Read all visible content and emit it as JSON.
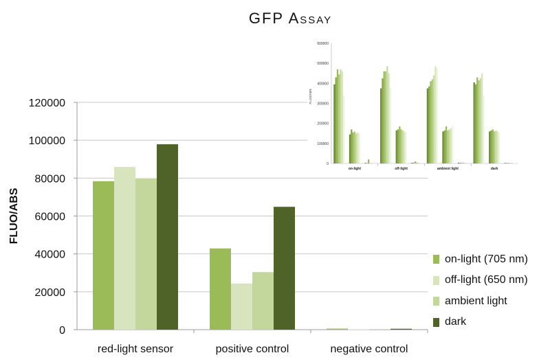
{
  "title": "GFP Assay",
  "chart_data": [
    {
      "type": "bar",
      "title": "GFP Assay",
      "xlabel": "",
      "ylabel": "FLUO/ABS",
      "ylim": [
        0,
        120000
      ],
      "yticks": [
        0,
        20000,
        40000,
        60000,
        80000,
        100000,
        120000
      ],
      "ytick_labels": [
        "0",
        "20000",
        "40000",
        "60000",
        "80000",
        "100000",
        "120000"
      ],
      "grid": true,
      "legend": "right",
      "categories": [
        "red-light sensor",
        "positive control",
        "negative control"
      ],
      "series": [
        {
          "name": "on-light (705 nm)",
          "color": "#9bbb59",
          "values": [
            78500,
            43000,
            700
          ]
        },
        {
          "name": "off-light (650 nm)",
          "color": "#d7e4bd",
          "values": [
            86000,
            24500,
            300
          ]
        },
        {
          "name": "ambient light",
          "color": "#c3d69b",
          "values": [
            80000,
            30500,
            400
          ]
        },
        {
          "name": "dark",
          "color": "#4f6228",
          "values": [
            98000,
            65000,
            600
          ]
        }
      ]
    },
    {
      "type": "bar",
      "title": "",
      "xlabel": "",
      "ylabel": "FLUO/ABS",
      "ylim": [
        0,
        600000
      ],
      "yticks": [
        0,
        100000,
        200000,
        300000,
        400000,
        500000,
        600000
      ],
      "ytick_labels": [
        "0",
        "100000",
        "200000",
        "300000",
        "400000",
        "500000",
        "600000"
      ],
      "grid": false,
      "legend": "none",
      "categories": [
        "on-light",
        "off-light",
        "ambient light",
        "dark"
      ],
      "groups": [
        [
          395000,
          430000,
          470000,
          445000,
          470000,
          460000,
          340000
        ],
        [
          145000,
          170000,
          155000,
          160000,
          150000,
          155000,
          150000
        ],
        [
          3000,
          2000,
          20000,
          2000,
          2000,
          2000,
          2000
        ],
        [
          375000,
          425000,
          460000,
          460000,
          485000,
          450000,
          380000
        ],
        [
          165000,
          170000,
          185000,
          170000,
          165000,
          160000,
          155000
        ],
        [
          4000,
          3000,
          10000,
          5000,
          3000,
          3000,
          3000
        ],
        [
          375000,
          385000,
          410000,
          420000,
          440000,
          485000,
          475000
        ],
        [
          160000,
          165000,
          185000,
          165000,
          170000,
          175000,
          190000
        ],
        [
          4000,
          3000,
          3000,
          4000,
          3000,
          3000,
          3000
        ],
        [
          405000,
          395000,
          430000,
          415000,
          425000,
          450000,
          340000
        ],
        [
          160000,
          165000,
          170000,
          160000,
          165000,
          160000,
          155000
        ],
        [
          3000,
          2000,
          3000,
          2000,
          3000,
          2000,
          2000
        ]
      ]
    }
  ]
}
